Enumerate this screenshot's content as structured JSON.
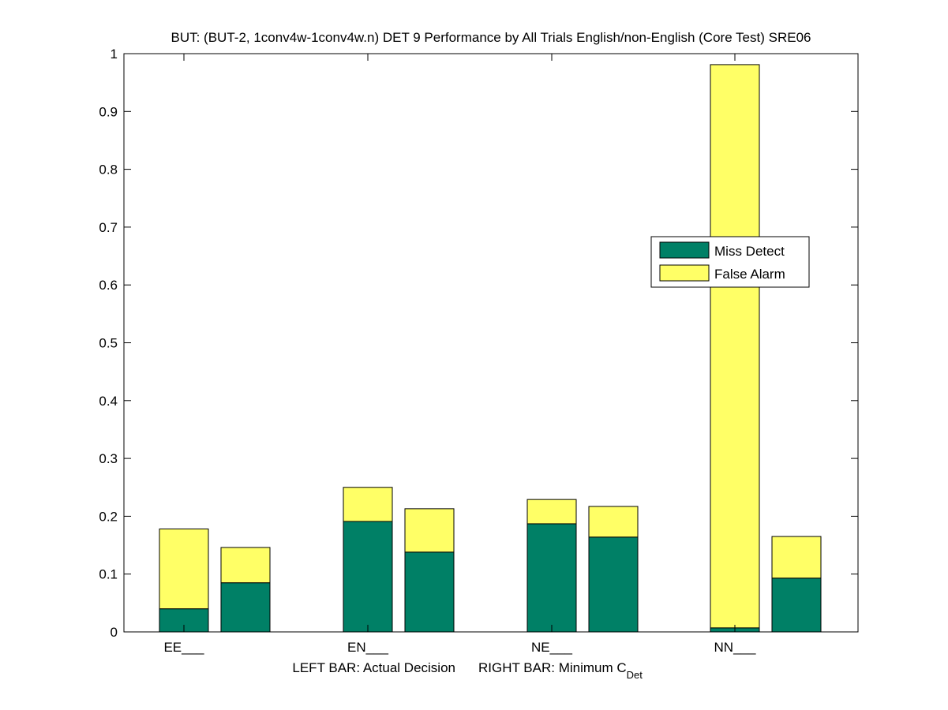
{
  "chart_data": {
    "type": "bar",
    "stacked": true,
    "title": "BUT: (BUT-2, 1conv4w-1conv4w.n) DET 9 Performance by All Trials English/non-English (Core Test) SRE06",
    "categories": [
      "EE___",
      "EN___",
      "NE___",
      "NN___"
    ],
    "xlabel": {
      "left": "LEFT BAR: Actual Decision",
      "right_prefix": "RIGHT BAR: Minimum C",
      "right_subscript": "Det"
    },
    "ylabel": "",
    "ylim": [
      0,
      1
    ],
    "yticks": [
      "0",
      "0.1",
      "0.2",
      "0.3",
      "0.4",
      "0.5",
      "0.6",
      "0.7",
      "0.8",
      "0.9",
      "1"
    ],
    "bars_per_category": [
      "Actual Decision",
      "Minimum C_Det"
    ],
    "series": [
      {
        "name": "Miss Detect",
        "color": "#008066",
        "actual_decision": [
          0.04,
          0.191,
          0.187,
          0.007
        ],
        "minimum_cdet": [
          0.085,
          0.138,
          0.164,
          0.093
        ]
      },
      {
        "name": "False Alarm",
        "color": "#ffff66",
        "actual_decision": [
          0.138,
          0.059,
          0.042,
          0.974
        ],
        "minimum_cdet": [
          0.061,
          0.075,
          0.053,
          0.072
        ]
      }
    ],
    "legend": {
      "position": "right",
      "entries": [
        "Miss Detect",
        "False Alarm"
      ]
    },
    "grid": false
  }
}
